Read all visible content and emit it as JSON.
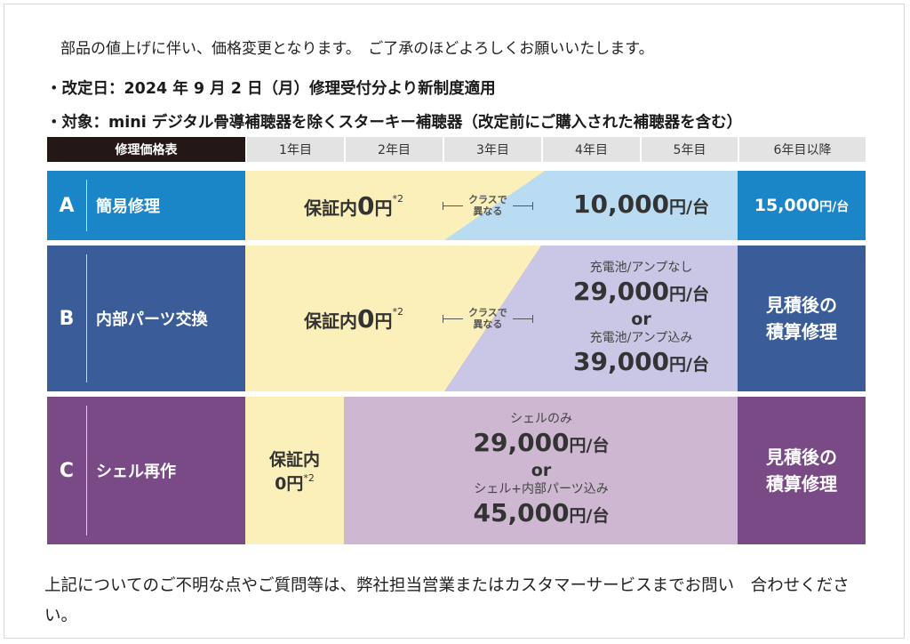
{
  "intro": "部品の値上げに伴い、価格変更となります。　ご了承のほどよろしくお願いいたします。",
  "bullets": {
    "date": "・改定日：2024 年 9 月 2 日（月）修理受付分より新制度適用",
    "target": "・対象：mini デジタル骨導補聴器を除くスターキー補聴器（改定前にご購入された補聴器を含む）"
  },
  "table": {
    "title": "修理価格表",
    "years": [
      "1年目",
      "2年目",
      "3年目",
      "4年目",
      "5年目",
      "6年目以降"
    ],
    "rows": [
      {
        "letter": "A",
        "name": "簡易修理",
        "warranty_prefix": "保証内",
        "warranty_zero": "0",
        "warranty_unit": "円",
        "warranty_note": "*2",
        "class_text_1": "クラスで",
        "class_text_2": "異なる",
        "price": "10,000",
        "price_unit": "円/台",
        "sixth_price": "15,000",
        "sixth_unit": "円/台"
      },
      {
        "letter": "B",
        "name": "内部パーツ交換",
        "warranty_prefix": "保証内",
        "warranty_zero": "0",
        "warranty_unit": "円",
        "warranty_note": "*2",
        "class_text_1": "クラスで",
        "class_text_2": "異なる",
        "note1": "充電池/アンプなし",
        "price1": "29,000",
        "price1_unit": "円/台",
        "or": "or",
        "note2": "充電池/アンプ込み",
        "price2": "39,000",
        "price2_unit": "円/台",
        "sixth_1": "見積後の",
        "sixth_2": "積算修理"
      },
      {
        "letter": "C",
        "name": "シェル再作",
        "warranty_prefix": "保証内",
        "warranty_zero": "0",
        "warranty_unit": "円",
        "warranty_note": "*2",
        "note1": "シェルのみ",
        "price1": "29,000",
        "price1_unit": "円/台",
        "or": "or",
        "note2": "シェル+内部パーツ込み",
        "price2": "45,000",
        "price2_unit": "円/台",
        "sixth_1": "見積後の",
        "sixth_2": "積算修理"
      }
    ]
  },
  "footer": "上記についてのご不明な点やご質問等は、弊社担当営業またはカスタマーサービスまでお問い　合わせください。",
  "colors": {
    "row_a": "#1a86c8",
    "row_b": "#3a5c99",
    "row_c": "#7a4a86",
    "warranty_bg": "#fbf0b9",
    "a_paid_bg": "#b9dcf2",
    "b_paid_bg": "#c9c6e6",
    "c_paid_bg": "#cdb7d1"
  }
}
